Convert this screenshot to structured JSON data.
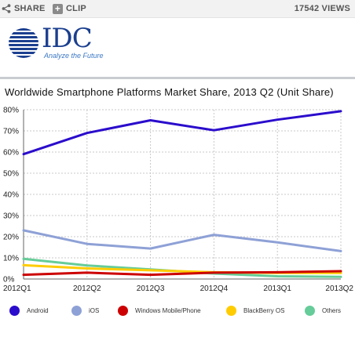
{
  "toolbar": {
    "share_label": "SHARE",
    "clip_label": "CLIP",
    "views_label": "17542 VIEWS",
    "share_icon": "share-icon",
    "clip_icon": "plus-icon"
  },
  "logo": {
    "wordmark": "IDC",
    "tagline": "Analyze the Future",
    "brand_color": "#1b3f8f",
    "tagline_color": "#3b78c4"
  },
  "chart_data": {
    "type": "line",
    "title": "Worldwide Smartphone Platforms Market Share, 2013 Q2 (Unit Share)",
    "xlabel": "",
    "ylabel": "",
    "categories": [
      "2012Q1",
      "2012Q2",
      "2012Q3",
      "2012Q4",
      "2013Q1",
      "2013Q2"
    ],
    "y_tick_labels": [
      "0%",
      "10%",
      "20%",
      "30%",
      "40%",
      "50%",
      "60%",
      "70%",
      "80%"
    ],
    "ylim": [
      0,
      80
    ],
    "y_unit": "%",
    "grid": true,
    "legend_position": "bottom",
    "series": [
      {
        "name": "Android",
        "color": "#2a0ccc",
        "values": [
          59,
          69,
          75,
          70.3,
          75.3,
          79.3
        ]
      },
      {
        "name": "iOS",
        "color": "#8ea1d6",
        "values": [
          23,
          16.6,
          14.4,
          20.9,
          17.3,
          13.2
        ]
      },
      {
        "name": "Windows Mobile/Phone",
        "color": "#cc0000",
        "values": [
          2,
          3,
          2,
          3,
          3.2,
          3.7
        ]
      },
      {
        "name": "BlackBerry OS",
        "color": "#ffcc00",
        "values": [
          6.5,
          5,
          4.1,
          3.2,
          2.9,
          2.9
        ]
      },
      {
        "name": "Others",
        "color": "#66cc99",
        "values": [
          9.5,
          6.4,
          4.5,
          2.6,
          1.3,
          1
        ]
      }
    ]
  }
}
